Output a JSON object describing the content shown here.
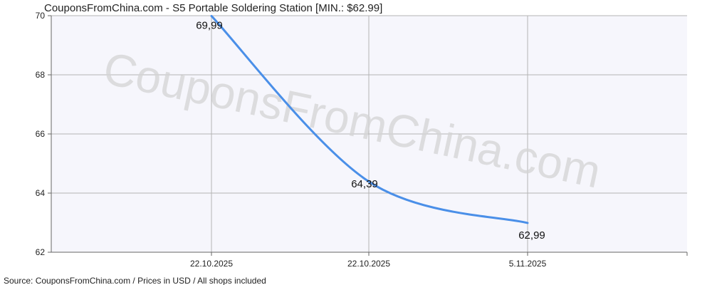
{
  "chart_data": {
    "type": "line",
    "title": "CouponsFromChina.com - S5 Portable Soldering Station [MIN.: $62.99]",
    "x": [
      "22.10.2025",
      "22.10.2025",
      "5.11.2025"
    ],
    "series": [
      {
        "values": [
          69.99,
          64.39,
          62.99
        ],
        "labels": [
          "69,99",
          "64,39",
          "62,99"
        ]
      }
    ],
    "xticks": [
      "22.10.2025",
      "22.10.2025",
      "5.11.2025"
    ],
    "yticks": [
      "70",
      "68",
      "66",
      "64",
      "62"
    ],
    "ylim": [
      62,
      70
    ],
    "grid": true,
    "line_color": "#4a8fe8",
    "grid_color": "#b4b4b4",
    "plot_background": "#f6f6fc",
    "watermark": "CouponsFromChina.com",
    "source": "Source: CouponsFromChina.com / Prices in USD / All shops included"
  }
}
